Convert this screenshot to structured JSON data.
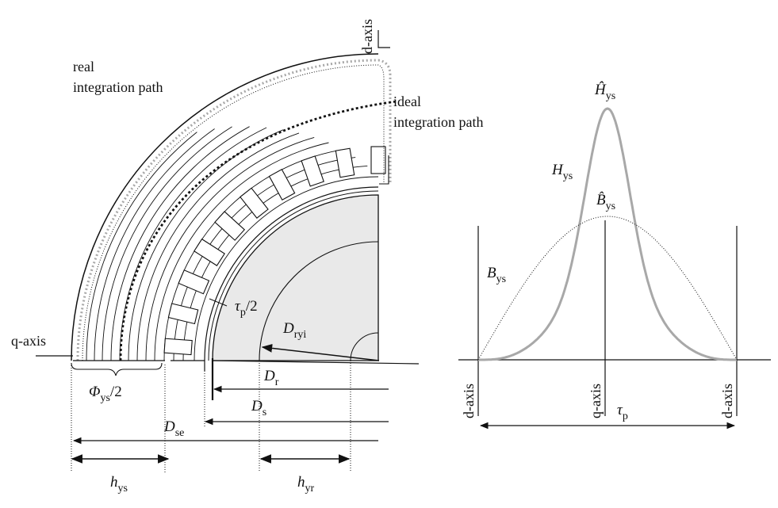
{
  "motor": {
    "axis_d": "d-axis",
    "axis_q": "q-axis",
    "real_path": [
      "real",
      "integration path"
    ],
    "ideal_path": [
      "ideal",
      "integration path"
    ],
    "tau_p_half": {
      "sym": "τ",
      "sub": "p",
      "suffix": "/2"
    },
    "phi": {
      "sym": "Φ",
      "sub": "ys",
      "suffix": "/2"
    },
    "dims": {
      "Dryi": {
        "sym": "D",
        "sub": "ryi"
      },
      "Dr": {
        "sym": "D",
        "sub": "r"
      },
      "Ds": {
        "sym": "D",
        "sub": "s"
      },
      "Dse": {
        "sym": "D",
        "sub": "se"
      },
      "hys": {
        "sym": "h",
        "sub": "ys"
      },
      "hyr": {
        "sym": "h",
        "sub": "yr"
      }
    }
  },
  "plot": {
    "Hhat": {
      "sym": "Ĥ",
      "sub": "ys"
    },
    "H": {
      "sym": "H",
      "sub": "ys"
    },
    "Bhat": {
      "sym": "B̂",
      "sub": "ys"
    },
    "B": {
      "sym": "B",
      "sub": "ys"
    },
    "tau_p": {
      "sym": "τ",
      "sub": "p"
    },
    "x_labels": [
      "d-axis",
      "q-axis",
      "d-axis"
    ]
  },
  "colors": {
    "ink": "#111111",
    "gray_curve": "#a8a8a8",
    "rotor_fill": "#e9e9e9"
  }
}
